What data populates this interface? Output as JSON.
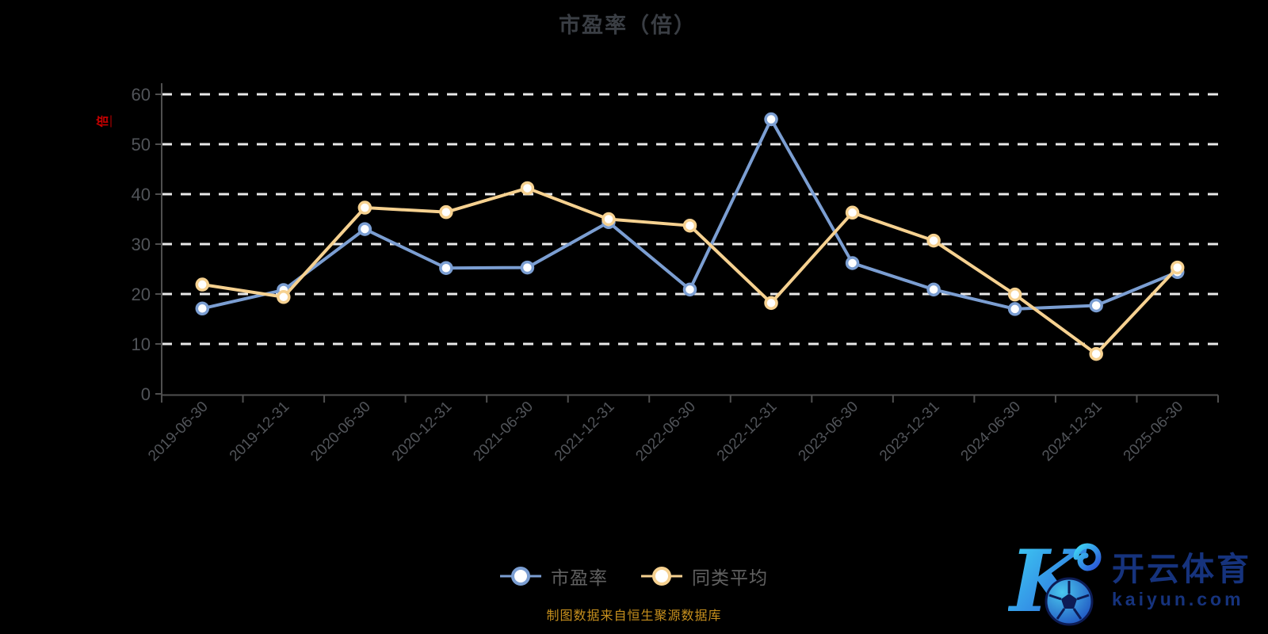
{
  "page": {
    "background": "#000000"
  },
  "chart": {
    "title": "市盈率（倍）",
    "unit_label": "倍",
    "unit_label_color": "#c80000",
    "title_color": "#3a3e44"
  },
  "chart_data": {
    "type": "line",
    "title": "市盈率（倍）",
    "categories": [
      "2019-06-30",
      "2019-12-31",
      "2020-06-30",
      "2020-12-31",
      "2021-06-30",
      "2021-12-31",
      "2022-06-30",
      "2022-12-31",
      "2023-06-30",
      "2023-12-31",
      "2024-06-30",
      "2024-12-31",
      "2025-06-30"
    ],
    "series": [
      {
        "name": "市盈率",
        "color": "#7b9ed2",
        "values": [
          17.1,
          20.8,
          33.0,
          25.2,
          25.3,
          34.4,
          20.9,
          55.0,
          26.2,
          20.9,
          17.0,
          17.7,
          24.4
        ]
      },
      {
        "name": "同类平均",
        "color": "#f6d190",
        "values": [
          21.9,
          19.4,
          37.3,
          36.4,
          41.2,
          35.0,
          33.7,
          18.2,
          36.3,
          30.7,
          19.9,
          8.0,
          25.3
        ]
      }
    ],
    "ylim": [
      0,
      60
    ],
    "y_ticks": [
      0,
      10,
      20,
      30,
      40,
      50,
      60
    ],
    "grid": "horizontal-dashed",
    "grid_color": "#e8e8e8",
    "axis_color": "#4f4f4f",
    "label_color": "#515459",
    "marker": "circle-white-fill",
    "legend_position": "bottom"
  },
  "footer": {
    "source": "制图数据来自恒生聚源数据库",
    "color": "#c68f1d"
  },
  "watermark": {
    "brand": "开云体育",
    "domain": "kaiyun.com",
    "text_color": "#16337d",
    "logo_gradient": [
      "#3fd8f5",
      "#2a52d8"
    ]
  }
}
